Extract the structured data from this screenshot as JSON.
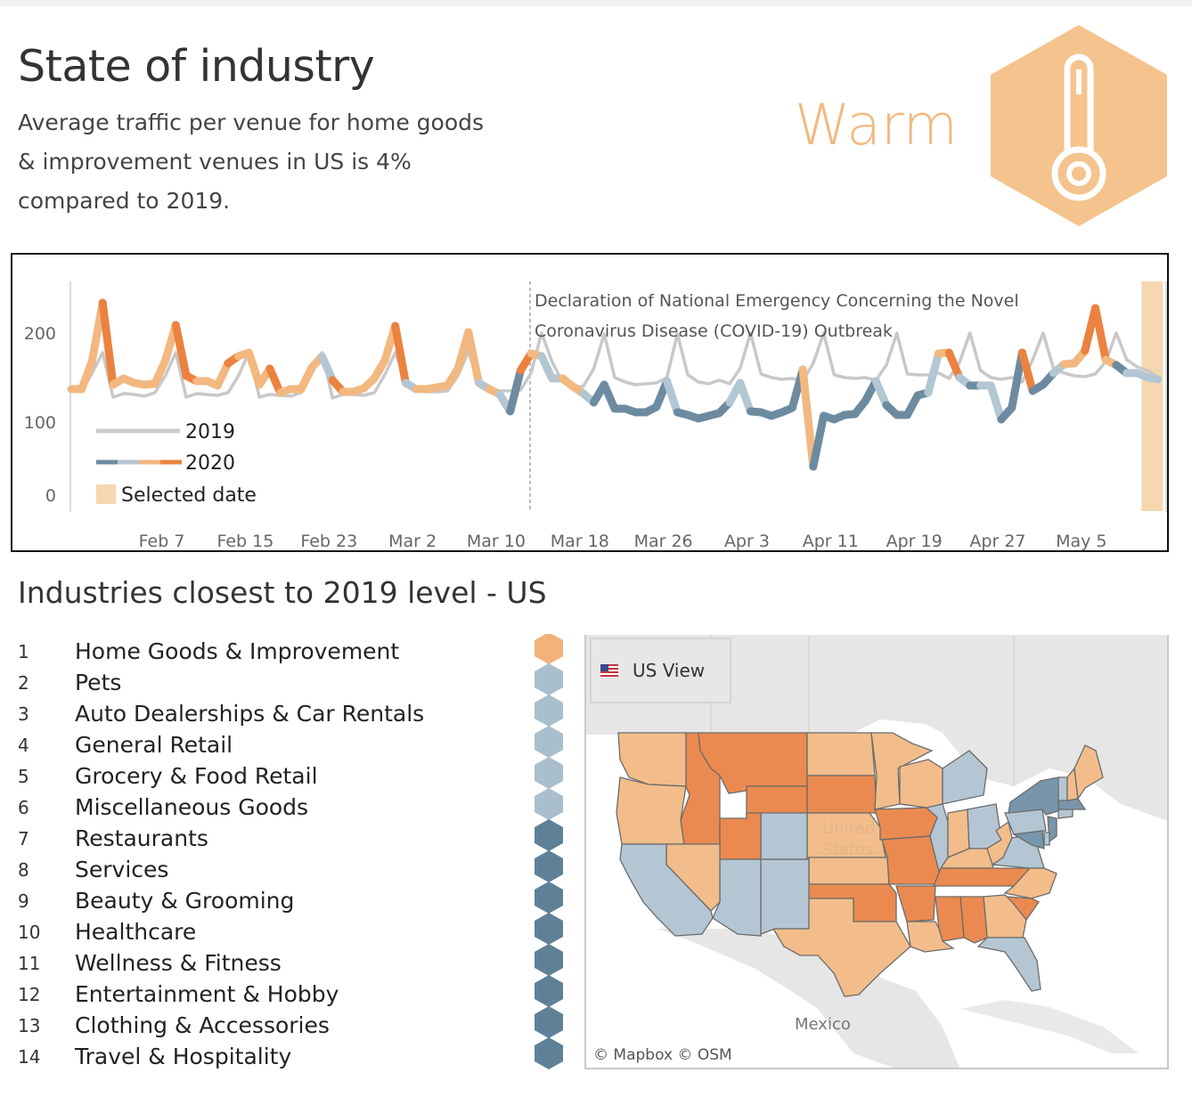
{
  "header": {
    "title": "State of industry",
    "subtitle_lines": [
      "Average traffic per venue for home goods",
      "& improvement venues in US is 4%",
      "compared to 2019."
    ],
    "status": "Warm",
    "status_icon": "thermometer-icon",
    "status_color": "#f2b880"
  },
  "chart_data": {
    "type": "line",
    "title": "",
    "xlabel": "",
    "ylabel": "",
    "ylim": [
      0,
      250
    ],
    "y_ticks": [
      0,
      100,
      200
    ],
    "x_tick_labels": [
      "Feb 7",
      "Feb 15",
      "Feb 23",
      "Mar 2",
      "Mar 10",
      "Mar 18",
      "Mar 26",
      "Apr 3",
      "Apr 11",
      "Apr 19",
      "Apr 27",
      "May 5"
    ],
    "x_start": "Jan 29",
    "x_end": "May 12",
    "grid": false,
    "legend_position": "bottom-left",
    "legend": [
      {
        "label": "2019",
        "type": "line",
        "color": "#c8c8c8"
      },
      {
        "label": "2020",
        "type": "gradient-line",
        "colors": [
          "#6d8ba0",
          "#b3c6d3",
          "#f2b880",
          "#eb8240"
        ]
      },
      {
        "label": "Selected date",
        "type": "box",
        "color": "#f5d7b0"
      }
    ],
    "annotation": {
      "date": "Mar 13",
      "lines": [
        "Declaration of National Emergency Concerning the Novel",
        "Coronavirus Disease (COVID-19) Outbreak"
      ]
    },
    "selected_date": "May 11",
    "series": [
      {
        "name": "2019",
        "color": "#c8c8c8",
        "values": [
          135,
          135,
          155,
          178,
          128,
          132,
          131,
          129,
          133,
          152,
          178,
          128,
          132,
          131,
          130,
          133,
          152,
          178,
          128,
          131,
          130,
          129,
          133,
          154,
          178,
          127,
          131,
          131,
          130,
          133,
          153,
          178,
          146,
          136,
          134,
          134,
          135,
          152,
          179,
          145,
          136,
          135,
          135,
          136,
          155,
          200,
          168,
          145,
          140,
          140,
          160,
          199,
          150,
          145,
          142,
          143,
          144,
          150,
          199,
          153,
          145,
          143,
          147,
          143,
          160,
          200,
          154,
          150,
          148,
          149,
          146,
          166,
          200,
          153,
          150,
          149,
          150,
          147,
          164,
          200,
          154,
          153,
          153,
          155,
          149,
          167,
          200,
          158,
          150,
          148,
          150,
          145,
          170,
          200,
          160,
          155,
          152,
          151,
          154,
          168,
          200,
          170,
          162,
          158,
          150
        ]
      },
      {
        "name": "2020",
        "values": [
          137,
          137,
          169,
          234,
          142,
          149,
          144,
          142,
          143,
          169,
          209,
          152,
          146,
          146,
          141,
          166,
          174,
          178,
          142,
          160,
          133,
          137,
          137,
          161,
          174,
          147,
          134,
          134,
          138,
          149,
          169,
          208,
          144,
          137,
          137,
          139,
          141,
          160,
          201,
          144,
          137,
          131,
          112,
          158,
          177,
          174,
          149,
          149,
          140,
          132,
          122,
          142,
          115,
          115,
          111,
          111,
          117,
          146,
          111,
          108,
          104,
          107,
          110,
          122,
          144,
          112,
          111,
          107,
          111,
          116,
          159,
          39,
          107,
          103,
          108,
          109,
          124,
          146,
          119,
          108,
          108,
          130,
          133,
          177,
          178,
          150,
          141,
          141,
          141,
          103,
          116,
          178,
          135,
          142,
          155,
          165,
          166,
          180,
          228,
          170,
          164,
          155,
          155,
          150,
          148
        ],
        "color_by_value": {
          "below_low": "#6d8ba0",
          "low": "#b3c6d3",
          "high": "#f2b880",
          "above_high": "#eb8240"
        }
      }
    ]
  },
  "industries": {
    "title": "Industries closest to 2019 level - US",
    "items": [
      {
        "rank": "1",
        "label": "Home Goods & Improvement",
        "status_color": "#f2b27a"
      },
      {
        "rank": "2",
        "label": "Pets",
        "status_color": "#a9bfcd"
      },
      {
        "rank": "3",
        "label": "Auto Dealerships & Car Rentals",
        "status_color": "#a9bfcd"
      },
      {
        "rank": "4",
        "label": "General Retail",
        "status_color": "#a9bfcd"
      },
      {
        "rank": "5",
        "label": "Grocery & Food Retail",
        "status_color": "#a9bfcd"
      },
      {
        "rank": "6",
        "label": "Miscellaneous Goods",
        "status_color": "#a9bfcd"
      },
      {
        "rank": "7",
        "label": "Restaurants",
        "status_color": "#5f8198"
      },
      {
        "rank": "8",
        "label": "Services",
        "status_color": "#5f8198"
      },
      {
        "rank": "9",
        "label": "Beauty & Grooming",
        "status_color": "#5f8198"
      },
      {
        "rank": "10",
        "label": "Healthcare",
        "status_color": "#5f8198"
      },
      {
        "rank": "11",
        "label": "Wellness & Fitness",
        "status_color": "#5f8198"
      },
      {
        "rank": "12",
        "label": "Entertainment & Hobby",
        "status_color": "#5f8198"
      },
      {
        "rank": "13",
        "label": "Clothing & Accessories",
        "status_color": "#5f8198"
      },
      {
        "rank": "14",
        "label": "Travel & Hospitality",
        "status_color": "#5f8198"
      }
    ]
  },
  "map": {
    "view_button": "US View",
    "view_icon": "us-flag-icon",
    "country_label_us": [
      "United",
      "States"
    ],
    "country_label_mx": "Mexico",
    "credit": "© Mapbox  © OSM",
    "colors": {
      "hot": "#eb8a50",
      "warm": "#f2bd8a",
      "cool": "#b4c6d3",
      "cold": "#7896ab"
    }
  }
}
